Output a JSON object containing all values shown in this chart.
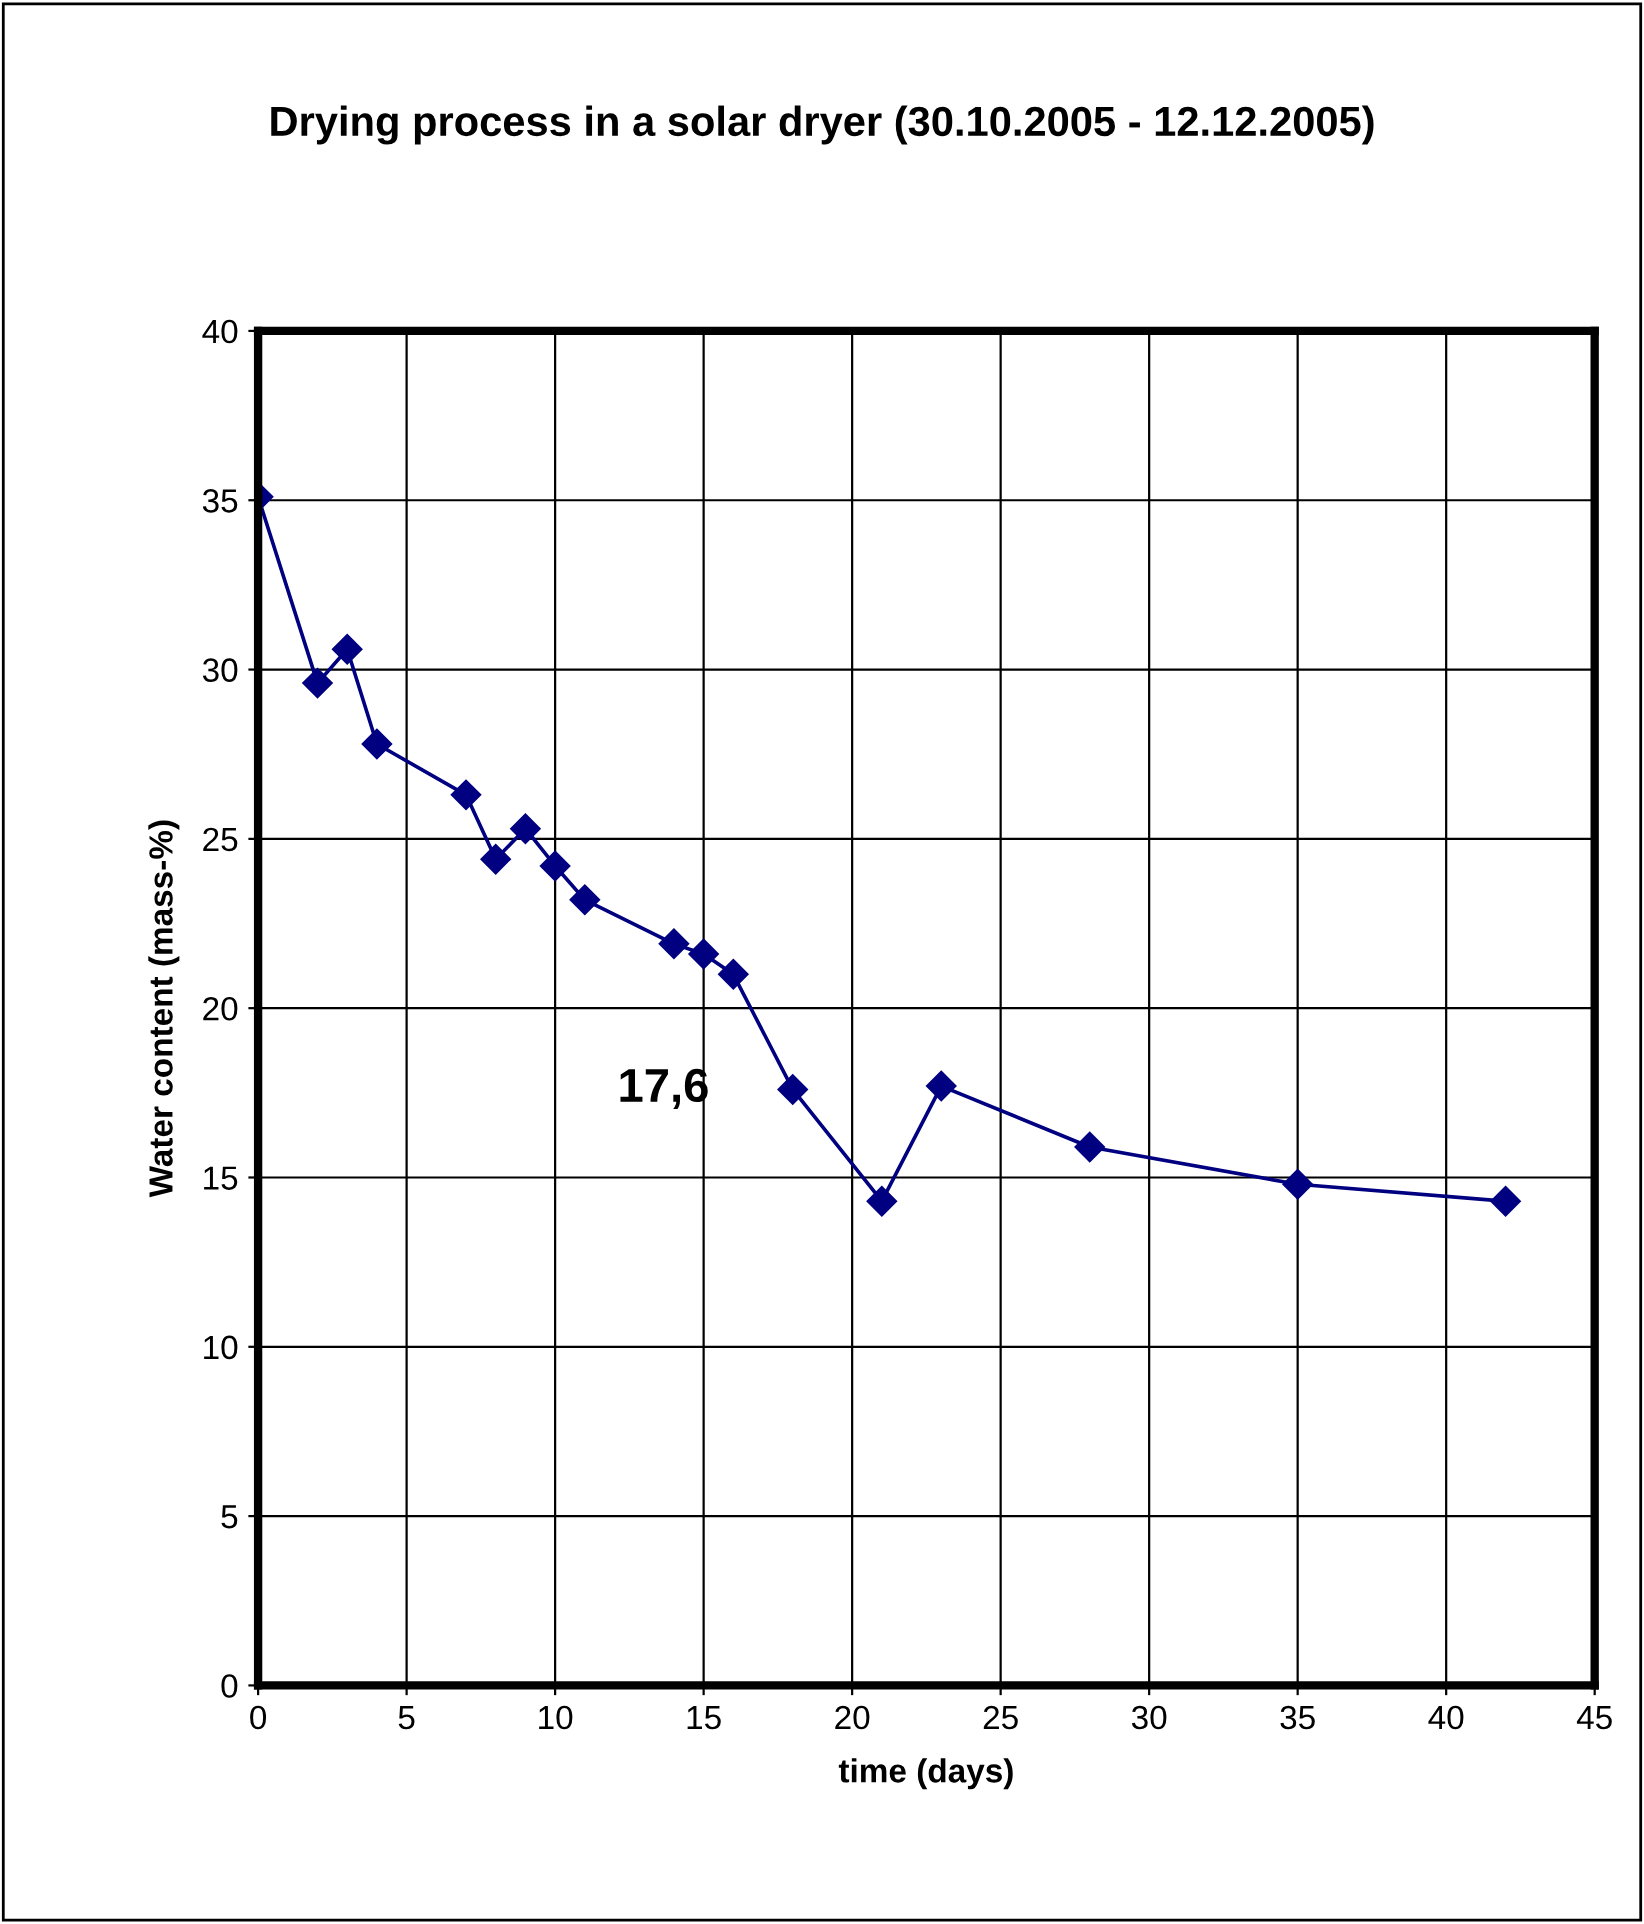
{
  "chart_data": {
    "type": "line",
    "title": "Drying process in a solar dryer (30.10.2005 - 12.12.2005)",
    "xlabel": "time (days)",
    "ylabel": "Water content (mass-%)",
    "x": [
      0,
      2,
      3,
      4,
      7,
      8,
      9,
      10,
      11,
      14,
      15,
      16,
      18,
      21,
      23,
      28,
      35,
      42
    ],
    "series": [
      {
        "color": "#000080",
        "values": [
          35.1,
          29.6,
          30.6,
          27.8,
          26.3,
          24.4,
          25.3,
          24.2,
          23.2,
          21.9,
          21.6,
          21.0,
          17.6,
          14.3,
          17.7,
          15.9,
          14.8,
          14.3
        ]
      }
    ],
    "xlim": [
      0,
      45
    ],
    "xticks": [
      0,
      5,
      10,
      15,
      20,
      25,
      30,
      35,
      40,
      45
    ],
    "ylim": [
      0,
      40
    ],
    "yticks": [
      0,
      5,
      10,
      15,
      20,
      25,
      30,
      35,
      40
    ],
    "grid": true,
    "marker": "diamond",
    "line_style": "solid",
    "annotations": [
      {
        "text": "17,6",
        "x": 18,
        "y": 17.6
      }
    ]
  }
}
